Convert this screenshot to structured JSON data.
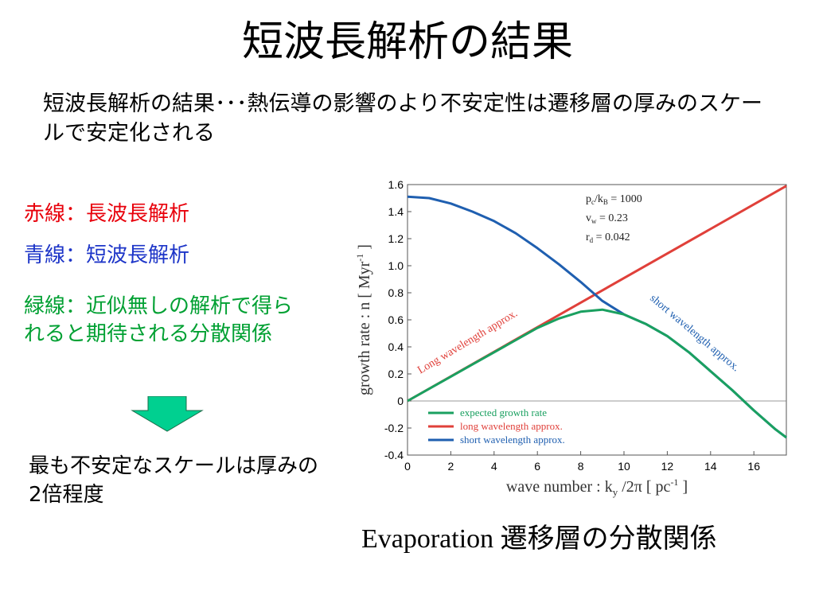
{
  "slide": {
    "title": "短波長解析の結果",
    "subtitle": "短波長解析の結果･･･熱伝導の影響のより不安定性は遷移層の厚みのスケールで安定化される",
    "red_label": "赤線：長波長解析",
    "blue_label": "青線：短波長解析",
    "green_label": "緑線：近似無しの解析で得られると期待される分散関係",
    "conclusion": "最も不安定なスケールは厚みの2倍程度",
    "caption": "Evaporation 遷移層の分散関係"
  },
  "colors": {
    "red_text": "#e8000b",
    "blue_text": "#1d35c8",
    "green_text": "#00a032",
    "arrow_fill": "#00d090",
    "series_green": "#1aa060",
    "series_red": "#e0403a",
    "series_blue": "#1f5fb0"
  },
  "chart_data": {
    "type": "line",
    "xlabel": "wave number : k",
    "xlabel_sub": "y",
    "xlabel_tail": " /2π  [ pc",
    "xlabel_sup": "-1",
    "xlabel_end": " ]",
    "ylabel": "growth rate : n  [ Myr",
    "ylabel_sup": "-1",
    "ylabel_end": " ]",
    "xlim": [
      0,
      17.5
    ],
    "ylim": [
      -0.4,
      1.6
    ],
    "xticks": [
      "0",
      "2",
      "4",
      "6",
      "8",
      "10",
      "12",
      "14",
      "16"
    ],
    "yticks": [
      "-0.4",
      "-0.2",
      "0",
      "0.2",
      "0.4",
      "0.6",
      "0.8",
      "1.0",
      "1.2",
      "1.4",
      "1.6"
    ],
    "params": [
      {
        "text": "p",
        "sub": "c",
        "tail": "/k",
        "sub2": "B",
        "end": " = 1000"
      },
      {
        "text": "v",
        "sub": "w",
        "tail": "",
        "sub2": "",
        "end": " = 0.23"
      },
      {
        "text": "r",
        "sub": "d",
        "tail": "",
        "sub2": "",
        "end": " = 0.042"
      }
    ],
    "annotations": {
      "long": "Long wavelength approx.",
      "short": "short wavelength approx."
    },
    "series": [
      {
        "name": "expected growth rate",
        "color": "#1aa060",
        "x": [
          0,
          1,
          2,
          3,
          4,
          5,
          6,
          7,
          8,
          9,
          10,
          11,
          12,
          13,
          14,
          15,
          16,
          17,
          17.5
        ],
        "y": [
          0,
          0.09,
          0.18,
          0.27,
          0.36,
          0.45,
          0.54,
          0.61,
          0.66,
          0.675,
          0.64,
          0.57,
          0.48,
          0.36,
          0.22,
          0.08,
          -0.07,
          -0.21,
          -0.27
        ]
      },
      {
        "name": "long wavelength approx.",
        "color": "#e0403a",
        "x": [
          0,
          17.5
        ],
        "y": [
          0,
          1.59
        ]
      },
      {
        "name": "short wavelength approx.",
        "color": "#1f5fb0",
        "x": [
          0,
          1,
          2,
          3,
          4,
          5,
          6,
          7,
          8,
          9,
          10,
          11,
          12,
          13,
          14,
          15,
          16,
          17,
          17.5
        ],
        "y": [
          1.51,
          1.5,
          1.46,
          1.4,
          1.33,
          1.24,
          1.13,
          1.01,
          0.88,
          0.74,
          0.64,
          0.57,
          0.48,
          0.36,
          0.22,
          0.08,
          -0.07,
          -0.21,
          -0.27
        ]
      }
    ]
  }
}
